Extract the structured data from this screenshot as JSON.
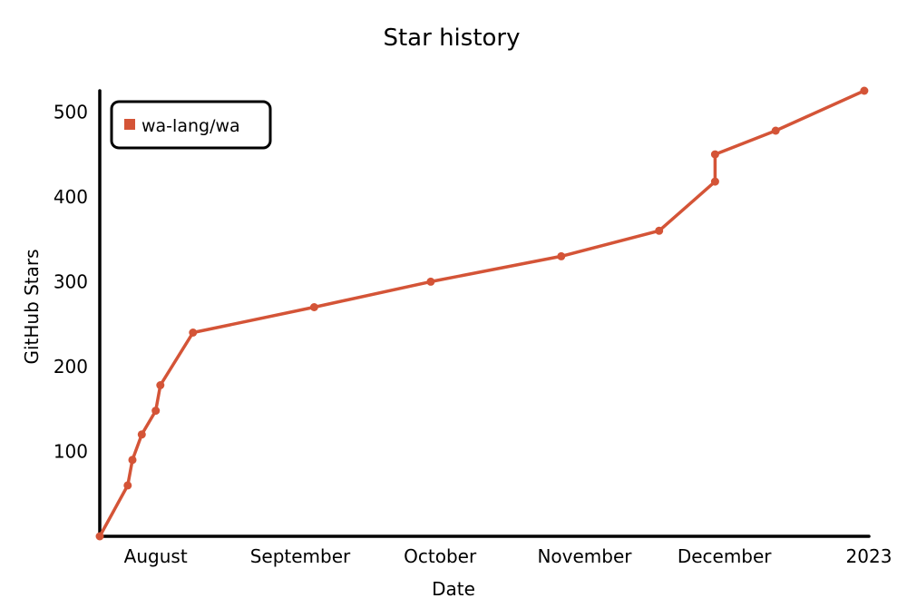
{
  "chart_data": {
    "type": "line",
    "title": "Star history",
    "xlabel": "Date",
    "ylabel": "GitHub Stars",
    "x_ticks": [
      {
        "label": "August",
        "date": "2022-08-01"
      },
      {
        "label": "September",
        "date": "2022-09-01"
      },
      {
        "label": "October",
        "date": "2022-10-01"
      },
      {
        "label": "November",
        "date": "2022-11-01"
      },
      {
        "label": "December",
        "date": "2022-12-01"
      },
      {
        "label": "2023",
        "date": "2023-01-01"
      }
    ],
    "y_ticks": [
      100,
      200,
      300,
      400,
      500
    ],
    "xlim": [
      "2022-07-20",
      "2023-01-01"
    ],
    "ylim": [
      0,
      525
    ],
    "legend_position": "top-left",
    "series": [
      {
        "name": "wa-lang/wa",
        "color": "#d45437",
        "points": [
          {
            "x": "2022-07-20",
            "y": 0
          },
          {
            "x": "2022-07-26",
            "y": 60
          },
          {
            "x": "2022-07-27",
            "y": 90
          },
          {
            "x": "2022-07-29",
            "y": 120
          },
          {
            "x": "2022-08-01",
            "y": 148
          },
          {
            "x": "2022-08-02",
            "y": 178
          },
          {
            "x": "2022-08-09",
            "y": 240
          },
          {
            "x": "2022-09-04",
            "y": 270
          },
          {
            "x": "2022-09-29",
            "y": 300
          },
          {
            "x": "2022-10-27",
            "y": 330
          },
          {
            "x": "2022-11-17",
            "y": 360
          },
          {
            "x": "2022-11-29",
            "y": 418
          },
          {
            "x": "2022-11-29",
            "y": 450
          },
          {
            "x": "2022-12-12",
            "y": 478
          },
          {
            "x": "2022-12-31",
            "y": 525
          }
        ]
      }
    ]
  }
}
